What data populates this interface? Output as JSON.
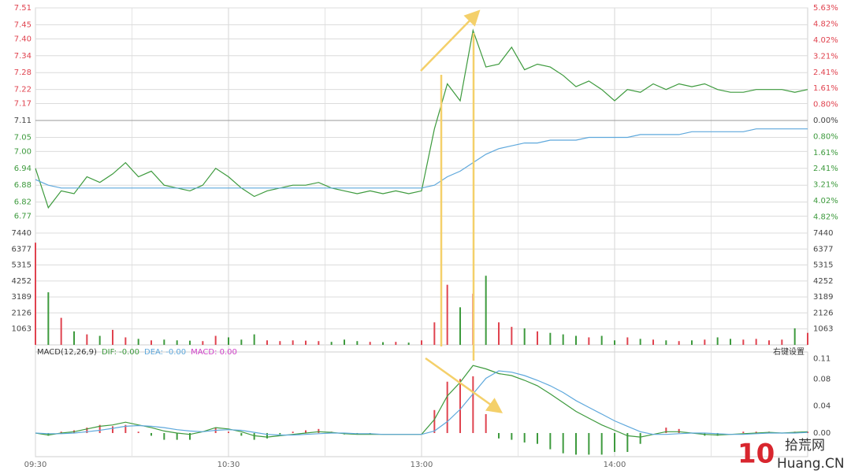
{
  "chart_data": [
    {
      "type": "line",
      "x": [
        0,
        4,
        8,
        12,
        16,
        20,
        24,
        28,
        32,
        36,
        40,
        44,
        48,
        52,
        56,
        60,
        64,
        68,
        72,
        76,
        80,
        84,
        88,
        92,
        96,
        100,
        104,
        108,
        112,
        116,
        120,
        124,
        128,
        132,
        136,
        140,
        144,
        148,
        152,
        156,
        160,
        164,
        168,
        172,
        176,
        180,
        184,
        188,
        192,
        196,
        200,
        204,
        208,
        212,
        216,
        220,
        224,
        228,
        232,
        236,
        240
      ],
      "xlim": [
        0,
        240
      ],
      "xticks": [
        {
          "value": 0,
          "label": "09:30"
        },
        {
          "value": 60,
          "label": "10:30"
        },
        {
          "value": 120,
          "label": "13:00"
        },
        {
          "value": 180,
          "label": "14:00"
        }
      ],
      "series": [
        {
          "color": "#3d9a3d",
          "values": [
            6.94,
            6.8,
            6.86,
            6.85,
            6.91,
            6.89,
            6.92,
            6.96,
            6.91,
            6.93,
            6.88,
            6.87,
            6.86,
            6.88,
            6.94,
            6.91,
            6.87,
            6.84,
            6.86,
            6.87,
            6.88,
            6.88,
            6.89,
            6.87,
            6.86,
            6.85,
            6.86,
            6.85,
            6.86,
            6.85,
            6.86,
            7.08,
            7.24,
            7.18,
            7.43,
            7.3,
            7.31,
            7.37,
            7.29,
            7.31,
            7.3,
            7.27,
            7.23,
            7.25,
            7.22,
            7.18,
            7.22,
            7.21,
            7.24,
            7.22,
            7.24,
            7.23,
            7.24,
            7.22,
            7.21,
            7.21,
            7.22,
            7.22,
            7.22,
            7.21,
            7.22
          ]
        },
        {
          "color": "#5ea8dc",
          "values": [
            6.9,
            6.88,
            6.87,
            6.87,
            6.87,
            6.87,
            6.87,
            6.87,
            6.87,
            6.87,
            6.87,
            6.87,
            6.87,
            6.87,
            6.87,
            6.87,
            6.87,
            6.87,
            6.87,
            6.87,
            6.87,
            6.87,
            6.87,
            6.87,
            6.87,
            6.87,
            6.87,
            6.87,
            6.87,
            6.87,
            6.87,
            6.88,
            6.91,
            6.93,
            6.96,
            6.99,
            7.01,
            7.02,
            7.03,
            7.03,
            7.04,
            7.04,
            7.04,
            7.05,
            7.05,
            7.05,
            7.05,
            7.06,
            7.06,
            7.06,
            7.06,
            7.07,
            7.07,
            7.07,
            7.07,
            7.07,
            7.08,
            7.08,
            7.08,
            7.08,
            7.08
          ]
        }
      ],
      "ylim": [
        6.71,
        7.51
      ],
      "yticks": [
        7.51,
        7.45,
        {
          "value": 7.4,
          "label": "7.40"
        },
        7.34,
        7.28,
        7.22,
        7.17,
        7.11,
        7.05,
        {
          "value": 7.0,
          "label": "7.00"
        },
        6.94,
        6.88,
        6.82,
        6.77
      ],
      "y2lim": [
        -5.63,
        5.63
      ],
      "y2ticks": [
        {
          "value": 5.63,
          "label": "5.63%"
        },
        {
          "value": 4.82,
          "label": "4.82%"
        },
        {
          "value": 4.02,
          "label": "4.02%"
        },
        {
          "value": 3.21,
          "label": "3.21%"
        },
        {
          "value": 2.41,
          "label": "2.41%"
        },
        {
          "value": 1.61,
          "label": "1.61%"
        },
        {
          "value": 0.8,
          "label": "0.80%"
        },
        {
          "value": 0,
          "label": "0.00%"
        },
        {
          "value": -0.8,
          "label": "0.80%"
        },
        {
          "value": -1.61,
          "label": "1.61%"
        },
        {
          "value": -2.41,
          "label": "2.41%"
        },
        {
          "value": -3.21,
          "label": "3.21%"
        },
        {
          "value": -4.02,
          "label": "4.02%"
        },
        {
          "value": -4.82,
          "label": "4.82%"
        }
      ],
      "up_color": "#e0434f",
      "down_color": "#3d9a3d",
      "grid": true
    },
    {
      "type": "bar",
      "values": [
        6800,
        3500,
        1800,
        900,
        700,
        600,
        1000,
        500,
        400,
        300,
        350,
        300,
        280,
        250,
        600,
        500,
        350,
        700,
        300,
        250,
        300,
        280,
        250,
        200,
        350,
        250,
        200,
        180,
        200,
        150,
        300,
        1500,
        4000,
        2500,
        3400,
        4600,
        1500,
        1200,
        1100,
        900,
        800,
        700,
        600,
        500,
        600,
        300,
        500,
        400,
        350,
        300,
        250,
        300,
        350,
        500,
        400,
        350,
        400,
        300,
        350,
        1100,
        800
      ],
      "ylim": [
        0,
        7440
      ],
      "yticks": [
        7440,
        6377,
        5315,
        4252,
        3189,
        2126,
        1063
      ],
      "up_color": "#e0434f",
      "down_color": "#3d9a3d",
      "grid": true
    },
    {
      "type": "macd",
      "legend_title": "MACD(12,26,9)",
      "settings_label": "右键设置",
      "series": [
        {
          "name": "DIF: -0.00",
          "color": "#3d9a3d",
          "style": "line",
          "values": [
            0,
            -0.003,
            0.0,
            0.002,
            0.006,
            0.01,
            0.012,
            0.016,
            0.012,
            0.008,
            0.003,
            0.0,
            -0.002,
            0.002,
            0.008,
            0.006,
            0.002,
            -0.004,
            -0.006,
            -0.004,
            -0.002,
            0.0,
            0.002,
            0.001,
            -0.001,
            -0.002,
            -0.002,
            -0.002,
            -0.002,
            -0.002,
            -0.002,
            0.02,
            0.055,
            0.075,
            0.1,
            0.095,
            0.088,
            0.085,
            0.078,
            0.07,
            0.058,
            0.045,
            0.032,
            0.022,
            0.012,
            0.004,
            -0.004,
            -0.006,
            -0.002,
            0.002,
            0.002,
            0.0,
            -0.002,
            -0.003,
            -0.002,
            -0.001,
            0.0,
            0.001,
            0.0,
            0.001,
            0.002
          ]
        },
        {
          "name": "DEA: -0.00",
          "color": "#5ea8dc",
          "style": "line",
          "values": [
            0,
            -0.001,
            -0.001,
            0.0,
            0.002,
            0.004,
            0.007,
            0.01,
            0.011,
            0.01,
            0.008,
            0.005,
            0.003,
            0.002,
            0.004,
            0.005,
            0.004,
            0.001,
            -0.002,
            -0.003,
            -0.003,
            -0.002,
            -0.001,
            0.0,
            0.0,
            -0.001,
            -0.001,
            -0.002,
            -0.002,
            -0.002,
            -0.002,
            0.003,
            0.017,
            0.035,
            0.058,
            0.081,
            0.092,
            0.09,
            0.085,
            0.078,
            0.07,
            0.06,
            0.048,
            0.038,
            0.028,
            0.018,
            0.01,
            0.002,
            -0.002,
            -0.002,
            -0.001,
            0.0,
            0.0,
            -0.001,
            -0.002,
            -0.002,
            -0.001,
            0.0,
            0.0,
            0.0,
            0.001
          ]
        },
        {
          "name": "MACD: 0.00",
          "color": "#d03fc8",
          "style": "bar",
          "values": [
            0,
            -0.004,
            0.002,
            0.004,
            0.008,
            0.012,
            0.01,
            0.012,
            0.002,
            -0.004,
            -0.01,
            -0.01,
            -0.01,
            0.0,
            0.008,
            0.002,
            -0.004,
            -0.01,
            -0.008,
            -0.002,
            0.002,
            0.004,
            0.006,
            0.002,
            -0.002,
            -0.002,
            -0.002,
            0,
            0,
            0,
            0,
            0.034,
            0.076,
            0.08,
            0.084,
            0.028,
            -0.008,
            -0.01,
            -0.014,
            -0.016,
            -0.024,
            -0.03,
            -0.032,
            -0.032,
            -0.032,
            -0.028,
            -0.028,
            -0.016,
            0.0,
            0.008,
            0.006,
            0.0,
            -0.004,
            -0.004,
            0.0,
            0.002,
            0.002,
            0.002,
            0.0,
            0.002,
            0.002
          ]
        }
      ],
      "ylim": [
        -0.035,
        0.12
      ],
      "yticks": [
        0.11,
        0.08,
        0.04,
        {
          "value": 0,
          "label": "0.00"
        }
      ],
      "up_color": "#e0434f",
      "down_color": "#3d9a3d",
      "grid": false
    }
  ],
  "watermark": {
    "logo": "10",
    "name": "拾荒网",
    "site": "Huang.CN"
  }
}
